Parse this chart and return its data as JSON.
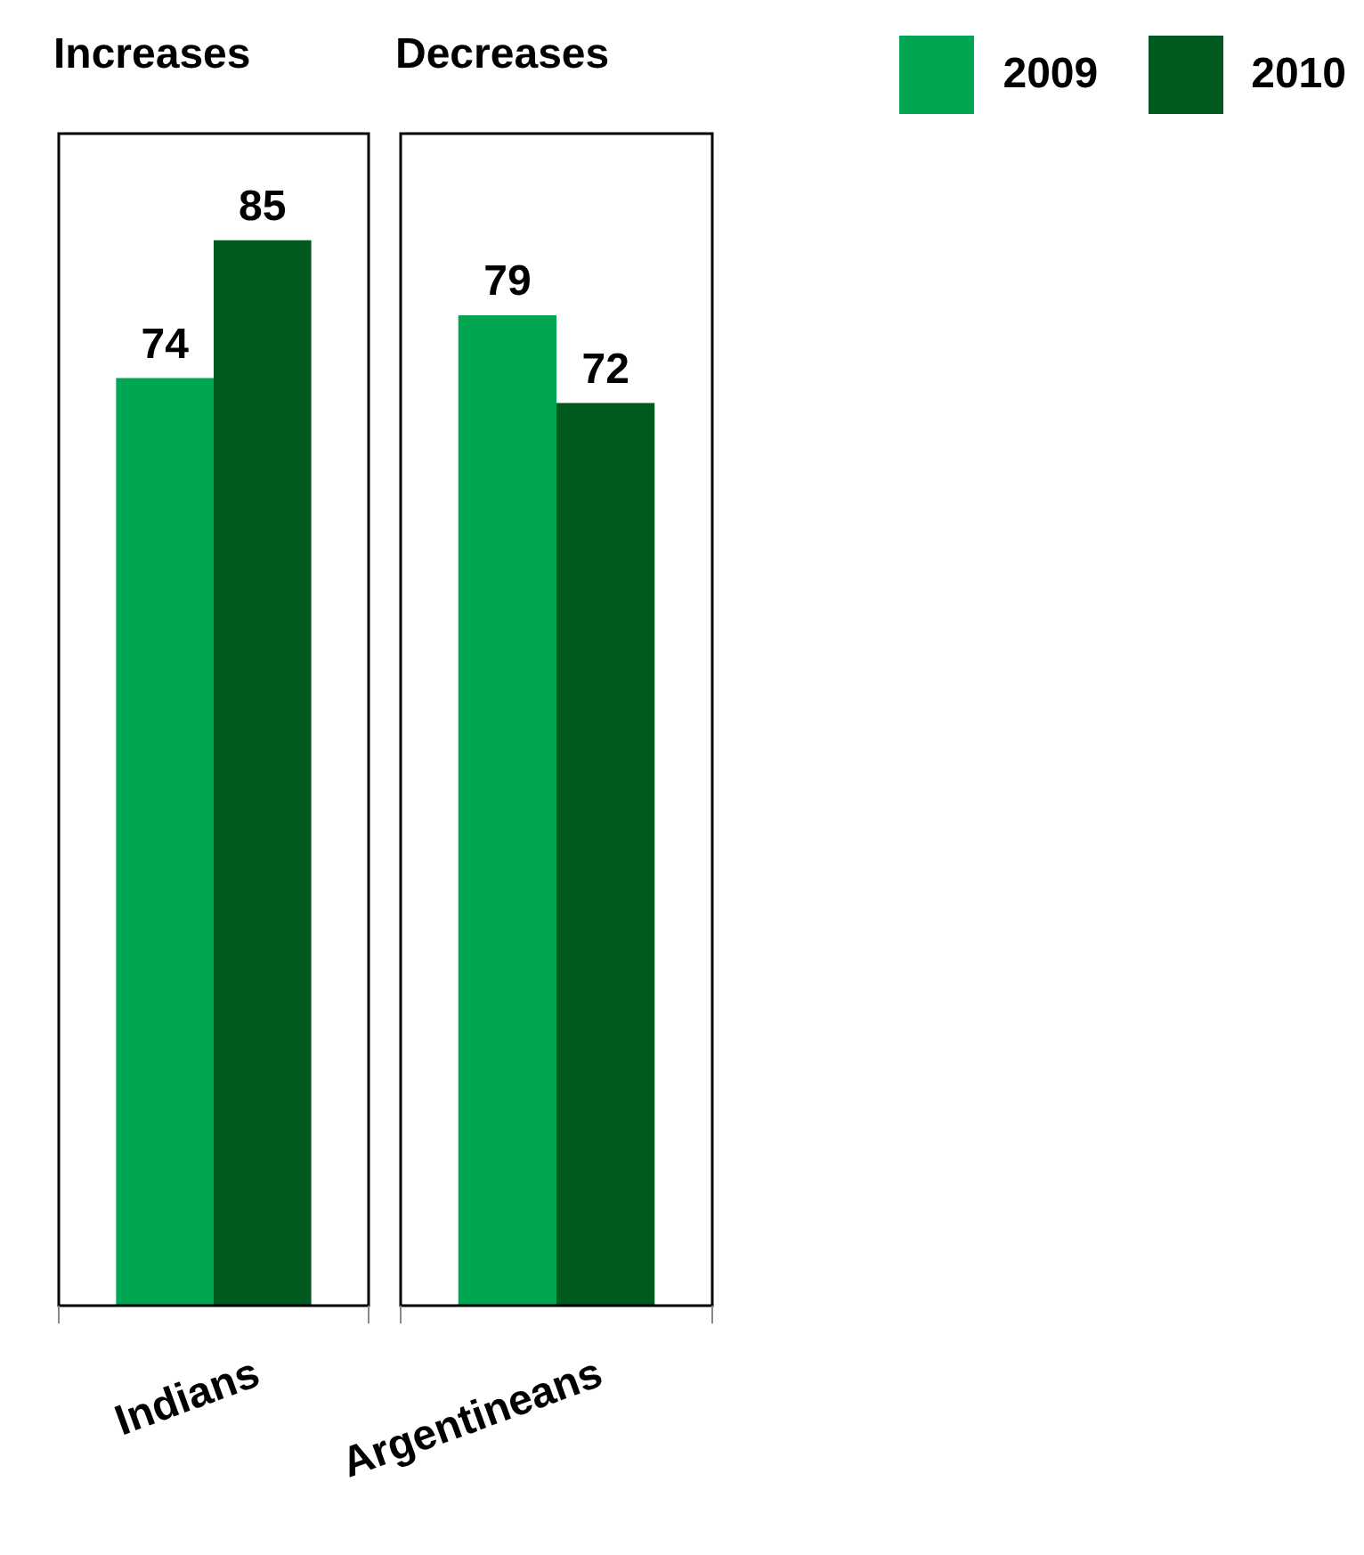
{
  "chart_data": [
    {
      "type": "bar",
      "title": "Increases",
      "categories": [
        "Indians"
      ],
      "series": [
        {
          "color": "#00a651",
          "values": [
            74
          ]
        },
        {
          "color": "#005a1f",
          "values": [
            85
          ]
        }
      ],
      "data_labels": true,
      "legend": false
    },
    {
      "type": "bar",
      "title": "Decreases",
      "categories": [
        "Argentineans"
      ],
      "series": [
        {
          "name": "2009",
          "color": "#00a651",
          "values": [
            79
          ]
        },
        {
          "name": "2010",
          "color": "#005a1f",
          "values": [
            72
          ]
        }
      ],
      "data_labels": true,
      "legend": "top right"
    }
  ]
}
